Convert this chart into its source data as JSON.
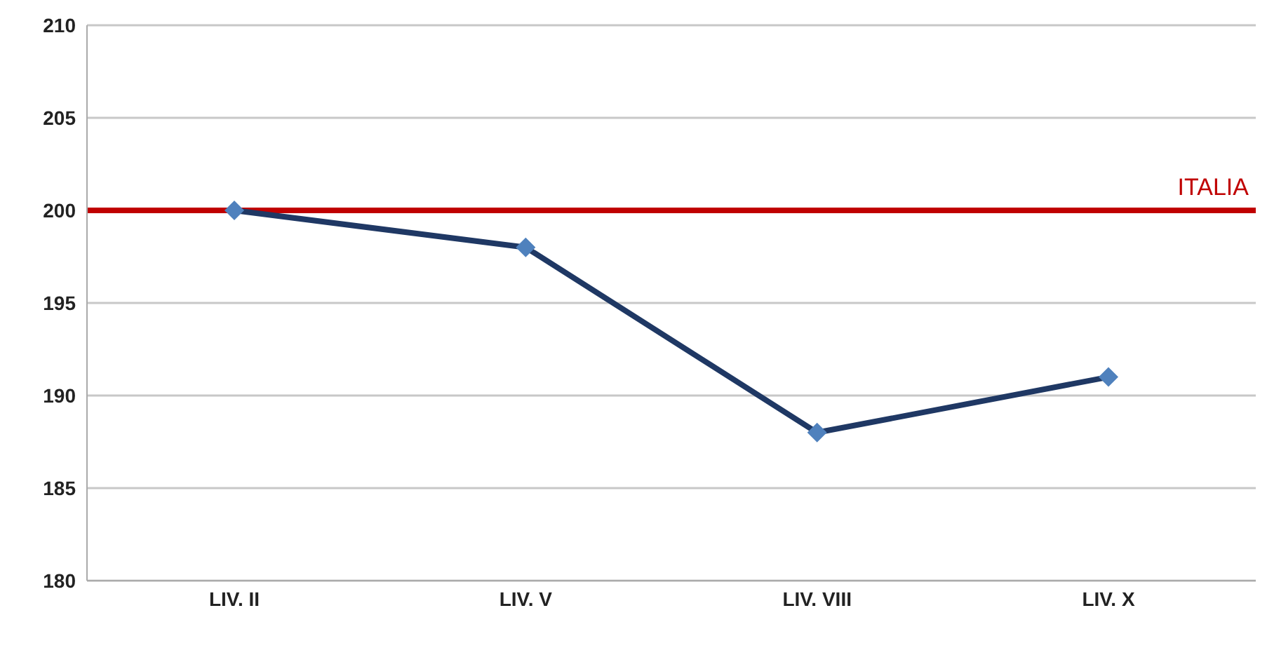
{
  "chart_data": {
    "type": "line",
    "categories": [
      "LIV. II",
      "LIV. V",
      "LIV. VIII",
      "LIV. X"
    ],
    "series": [
      {
        "color": "#1f3864",
        "colors": [
          "#4f81bd",
          "#4f81bd",
          "#4f81bd",
          "#4f81bd"
        ],
        "values": [
          200,
          198,
          188,
          191
        ]
      }
    ],
    "ylim": [
      180,
      210
    ],
    "yticks": [
      180,
      185,
      190,
      195,
      200,
      205,
      210
    ],
    "grid": "y",
    "marker": "diamond",
    "line_style": "solid",
    "ref_lines": [
      {
        "axis": "y",
        "value": 200,
        "label": "ITALIA",
        "color": "#c00000"
      }
    ]
  }
}
